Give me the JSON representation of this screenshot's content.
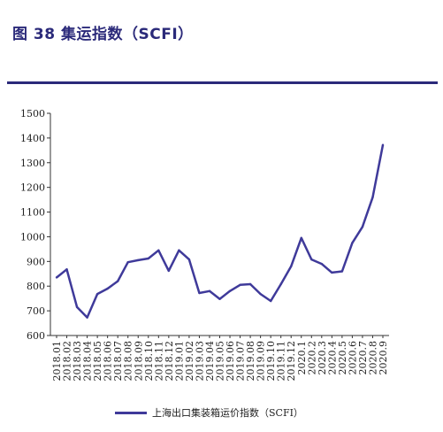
{
  "figure": {
    "title": "图 38 集运指数（SCFI）"
  },
  "chart_data": {
    "type": "line",
    "title": "",
    "xlabel": "",
    "ylabel": "",
    "ylim": [
      600,
      1500
    ],
    "yticks": [
      600,
      700,
      800,
      900,
      1000,
      1100,
      1200,
      1300,
      1400,
      1500
    ],
    "grid": false,
    "legend": "bottom",
    "categories": [
      "2018.01",
      "2018.02",
      "2018.03",
      "2018.04",
      "2018.05",
      "2018.06",
      "2018.07",
      "2018.08",
      "2018.09",
      "2018.10",
      "2018.11",
      "2018.12",
      "2019.01",
      "2019.02",
      "2019.03",
      "2019.04",
      "2019.05",
      "2019.06",
      "2019.07",
      "2019.08",
      "2019.09",
      "2019.10",
      "2019.11",
      "2019.12",
      "2020.1",
      "2020.2",
      "2020.3",
      "2020.4",
      "2020.5",
      "2020.6",
      "2020.7",
      "2020.8",
      "2020.9"
    ],
    "series": [
      {
        "name": "上海出口集装箱运价指数（SCFI）",
        "color": "#3f3a9a",
        "values": [
          835,
          868,
          715,
          673,
          768,
          790,
          820,
          897,
          905,
          912,
          945,
          862,
          945,
          908,
          772,
          780,
          748,
          780,
          805,
          808,
          768,
          740,
          808,
          880,
          995,
          908,
          890,
          855,
          860,
          975,
          1040,
          1160,
          1372
        ]
      }
    ]
  }
}
